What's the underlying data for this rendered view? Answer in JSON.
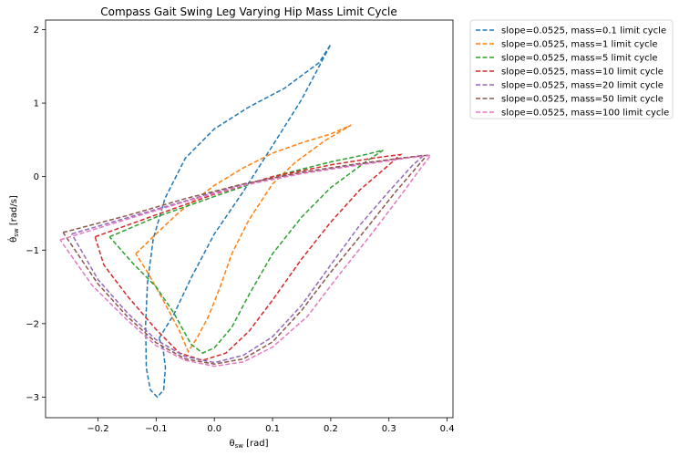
{
  "chart_data": {
    "type": "line",
    "title": "Compass Gait Swing Leg Varying Hip Mass Limit Cycle",
    "xlabel_main": "θ",
    "xlabel_sub": "sw",
    "xlabel_unit": " [rad]",
    "ylabel_main": "θ̇",
    "ylabel_sub": "sw",
    "ylabel_unit": " [rad/s]",
    "xlim": [
      -0.29,
      0.41
    ],
    "ylim": [
      -3.28,
      2.13
    ],
    "xticks": [
      -0.2,
      -0.1,
      0.0,
      0.1,
      0.2,
      0.3,
      0.4
    ],
    "xtick_labels": [
      "−0.2",
      "−0.1",
      "0.0",
      "0.1",
      "0.2",
      "0.3",
      "0.4"
    ],
    "yticks": [
      -3,
      -2,
      -1,
      0,
      1,
      2
    ],
    "ytick_labels": [
      "−3",
      "−2",
      "−1",
      "0",
      "1",
      "2"
    ],
    "grid": false,
    "legend_position": "outside-top-right",
    "series": [
      {
        "name": "slope=0.0525, mass=0.1 limit cycle",
        "color": "#1f77b4",
        "points": [
          [
            -0.095,
            -2.2
          ],
          [
            -0.07,
            -1.88
          ],
          [
            -0.04,
            -1.38
          ],
          [
            0.0,
            -0.78
          ],
          [
            0.05,
            -0.2
          ],
          [
            0.1,
            0.42
          ],
          [
            0.15,
            1.05
          ],
          [
            0.2,
            1.8
          ],
          [
            0.18,
            1.55
          ],
          [
            0.12,
            1.2
          ],
          [
            0.06,
            0.95
          ],
          [
            0.0,
            0.65
          ],
          [
            -0.05,
            0.25
          ],
          [
            -0.085,
            -0.3
          ],
          [
            -0.105,
            -0.85
          ],
          [
            -0.115,
            -1.45
          ],
          [
            -0.118,
            -2.0
          ],
          [
            -0.117,
            -2.6
          ],
          [
            -0.11,
            -2.9
          ],
          [
            -0.098,
            -3.0
          ],
          [
            -0.087,
            -2.9
          ],
          [
            -0.084,
            -2.6
          ],
          [
            -0.088,
            -2.35
          ],
          [
            -0.095,
            -2.2
          ]
        ]
      },
      {
        "name": "slope=0.0525, mass=1 limit cycle",
        "color": "#ff7f0e",
        "points": [
          [
            -0.135,
            -1.05
          ],
          [
            -0.1,
            -0.78
          ],
          [
            -0.06,
            -0.48
          ],
          [
            0.0,
            -0.12
          ],
          [
            0.05,
            0.12
          ],
          [
            0.1,
            0.32
          ],
          [
            0.15,
            0.46
          ],
          [
            0.2,
            0.58
          ],
          [
            0.235,
            0.7
          ],
          [
            0.19,
            0.49
          ],
          [
            0.14,
            0.2
          ],
          [
            0.1,
            -0.1
          ],
          [
            0.06,
            -0.58
          ],
          [
            0.03,
            -1.05
          ],
          [
            0.01,
            -1.5
          ],
          [
            -0.01,
            -1.9
          ],
          [
            -0.03,
            -2.2
          ],
          [
            -0.045,
            -2.38
          ],
          [
            -0.06,
            -2.1
          ],
          [
            -0.09,
            -1.65
          ],
          [
            -0.115,
            -1.3
          ],
          [
            -0.135,
            -1.05
          ]
        ]
      },
      {
        "name": "slope=0.0525, mass=5 limit cycle",
        "color": "#2ca02c",
        "points": [
          [
            -0.18,
            -0.82
          ],
          [
            -0.1,
            -0.55
          ],
          [
            0.0,
            -0.27
          ],
          [
            0.1,
            0.0
          ],
          [
            0.2,
            0.2
          ],
          [
            0.26,
            0.3
          ],
          [
            0.29,
            0.36
          ],
          [
            0.26,
            0.2
          ],
          [
            0.2,
            -0.15
          ],
          [
            0.15,
            -0.55
          ],
          [
            0.1,
            -1.05
          ],
          [
            0.06,
            -1.6
          ],
          [
            0.03,
            -2.05
          ],
          [
            0.0,
            -2.33
          ],
          [
            -0.02,
            -2.4
          ],
          [
            -0.04,
            -2.28
          ],
          [
            -0.07,
            -1.85
          ],
          [
            -0.1,
            -1.5
          ],
          [
            -0.14,
            -1.18
          ],
          [
            -0.18,
            -0.82
          ]
        ]
      },
      {
        "name": "slope=0.0525, mass=10 limit cycle",
        "color": "#d62728",
        "points": [
          [
            -0.205,
            -0.82
          ],
          [
            -0.1,
            -0.52
          ],
          [
            0.0,
            -0.24
          ],
          [
            0.1,
            0.0
          ],
          [
            0.2,
            0.16
          ],
          [
            0.28,
            0.26
          ],
          [
            0.32,
            0.3
          ],
          [
            0.3,
            0.16
          ],
          [
            0.25,
            -0.18
          ],
          [
            0.2,
            -0.62
          ],
          [
            0.15,
            -1.12
          ],
          [
            0.1,
            -1.68
          ],
          [
            0.06,
            -2.1
          ],
          [
            0.02,
            -2.4
          ],
          [
            -0.02,
            -2.5
          ],
          [
            -0.06,
            -2.4
          ],
          [
            -0.1,
            -2.08
          ],
          [
            -0.15,
            -1.62
          ],
          [
            -0.19,
            -1.2
          ],
          [
            -0.205,
            -0.82
          ]
        ]
      },
      {
        "name": "slope=0.0525, mass=20 limit cycle",
        "color": "#9467bd",
        "points": [
          [
            -0.245,
            -0.78
          ],
          [
            -0.15,
            -0.56
          ],
          [
            -0.05,
            -0.33
          ],
          [
            0.05,
            -0.1
          ],
          [
            0.15,
            0.05
          ],
          [
            0.25,
            0.17
          ],
          [
            0.32,
            0.25
          ],
          [
            0.36,
            0.29
          ],
          [
            0.34,
            0.15
          ],
          [
            0.3,
            -0.2
          ],
          [
            0.25,
            -0.66
          ],
          [
            0.2,
            -1.2
          ],
          [
            0.15,
            -1.75
          ],
          [
            0.1,
            -2.18
          ],
          [
            0.05,
            -2.43
          ],
          [
            0.0,
            -2.53
          ],
          [
            -0.05,
            -2.45
          ],
          [
            -0.1,
            -2.22
          ],
          [
            -0.15,
            -1.85
          ],
          [
            -0.2,
            -1.4
          ],
          [
            -0.245,
            -0.78
          ]
        ]
      },
      {
        "name": "slope=0.0525, mass=50 limit cycle",
        "color": "#8c564b",
        "points": [
          [
            -0.26,
            -0.76
          ],
          [
            -0.15,
            -0.53
          ],
          [
            -0.05,
            -0.3
          ],
          [
            0.05,
            -0.1
          ],
          [
            0.15,
            0.06
          ],
          [
            0.25,
            0.18
          ],
          [
            0.33,
            0.26
          ],
          [
            0.365,
            0.29
          ],
          [
            0.35,
            0.15
          ],
          [
            0.31,
            -0.22
          ],
          [
            0.26,
            -0.72
          ],
          [
            0.2,
            -1.3
          ],
          [
            0.15,
            -1.82
          ],
          [
            0.1,
            -2.25
          ],
          [
            0.05,
            -2.48
          ],
          [
            0.0,
            -2.55
          ],
          [
            -0.05,
            -2.48
          ],
          [
            -0.1,
            -2.26
          ],
          [
            -0.15,
            -1.9
          ],
          [
            -0.2,
            -1.46
          ],
          [
            -0.26,
            -0.76
          ]
        ]
      },
      {
        "name": "slope=0.0525, mass=100 limit cycle",
        "color": "#e377c2",
        "points": [
          [
            -0.265,
            -0.86
          ],
          [
            -0.15,
            -0.58
          ],
          [
            -0.05,
            -0.34
          ],
          [
            0.05,
            -0.12
          ],
          [
            0.15,
            0.04
          ],
          [
            0.25,
            0.16
          ],
          [
            0.33,
            0.25
          ],
          [
            0.372,
            0.29
          ],
          [
            0.355,
            0.12
          ],
          [
            0.32,
            -0.26
          ],
          [
            0.27,
            -0.78
          ],
          [
            0.21,
            -1.38
          ],
          [
            0.16,
            -1.9
          ],
          [
            0.1,
            -2.32
          ],
          [
            0.05,
            -2.52
          ],
          [
            0.0,
            -2.58
          ],
          [
            -0.05,
            -2.5
          ],
          [
            -0.1,
            -2.3
          ],
          [
            -0.15,
            -1.95
          ],
          [
            -0.21,
            -1.48
          ],
          [
            -0.265,
            -0.86
          ]
        ]
      }
    ]
  }
}
